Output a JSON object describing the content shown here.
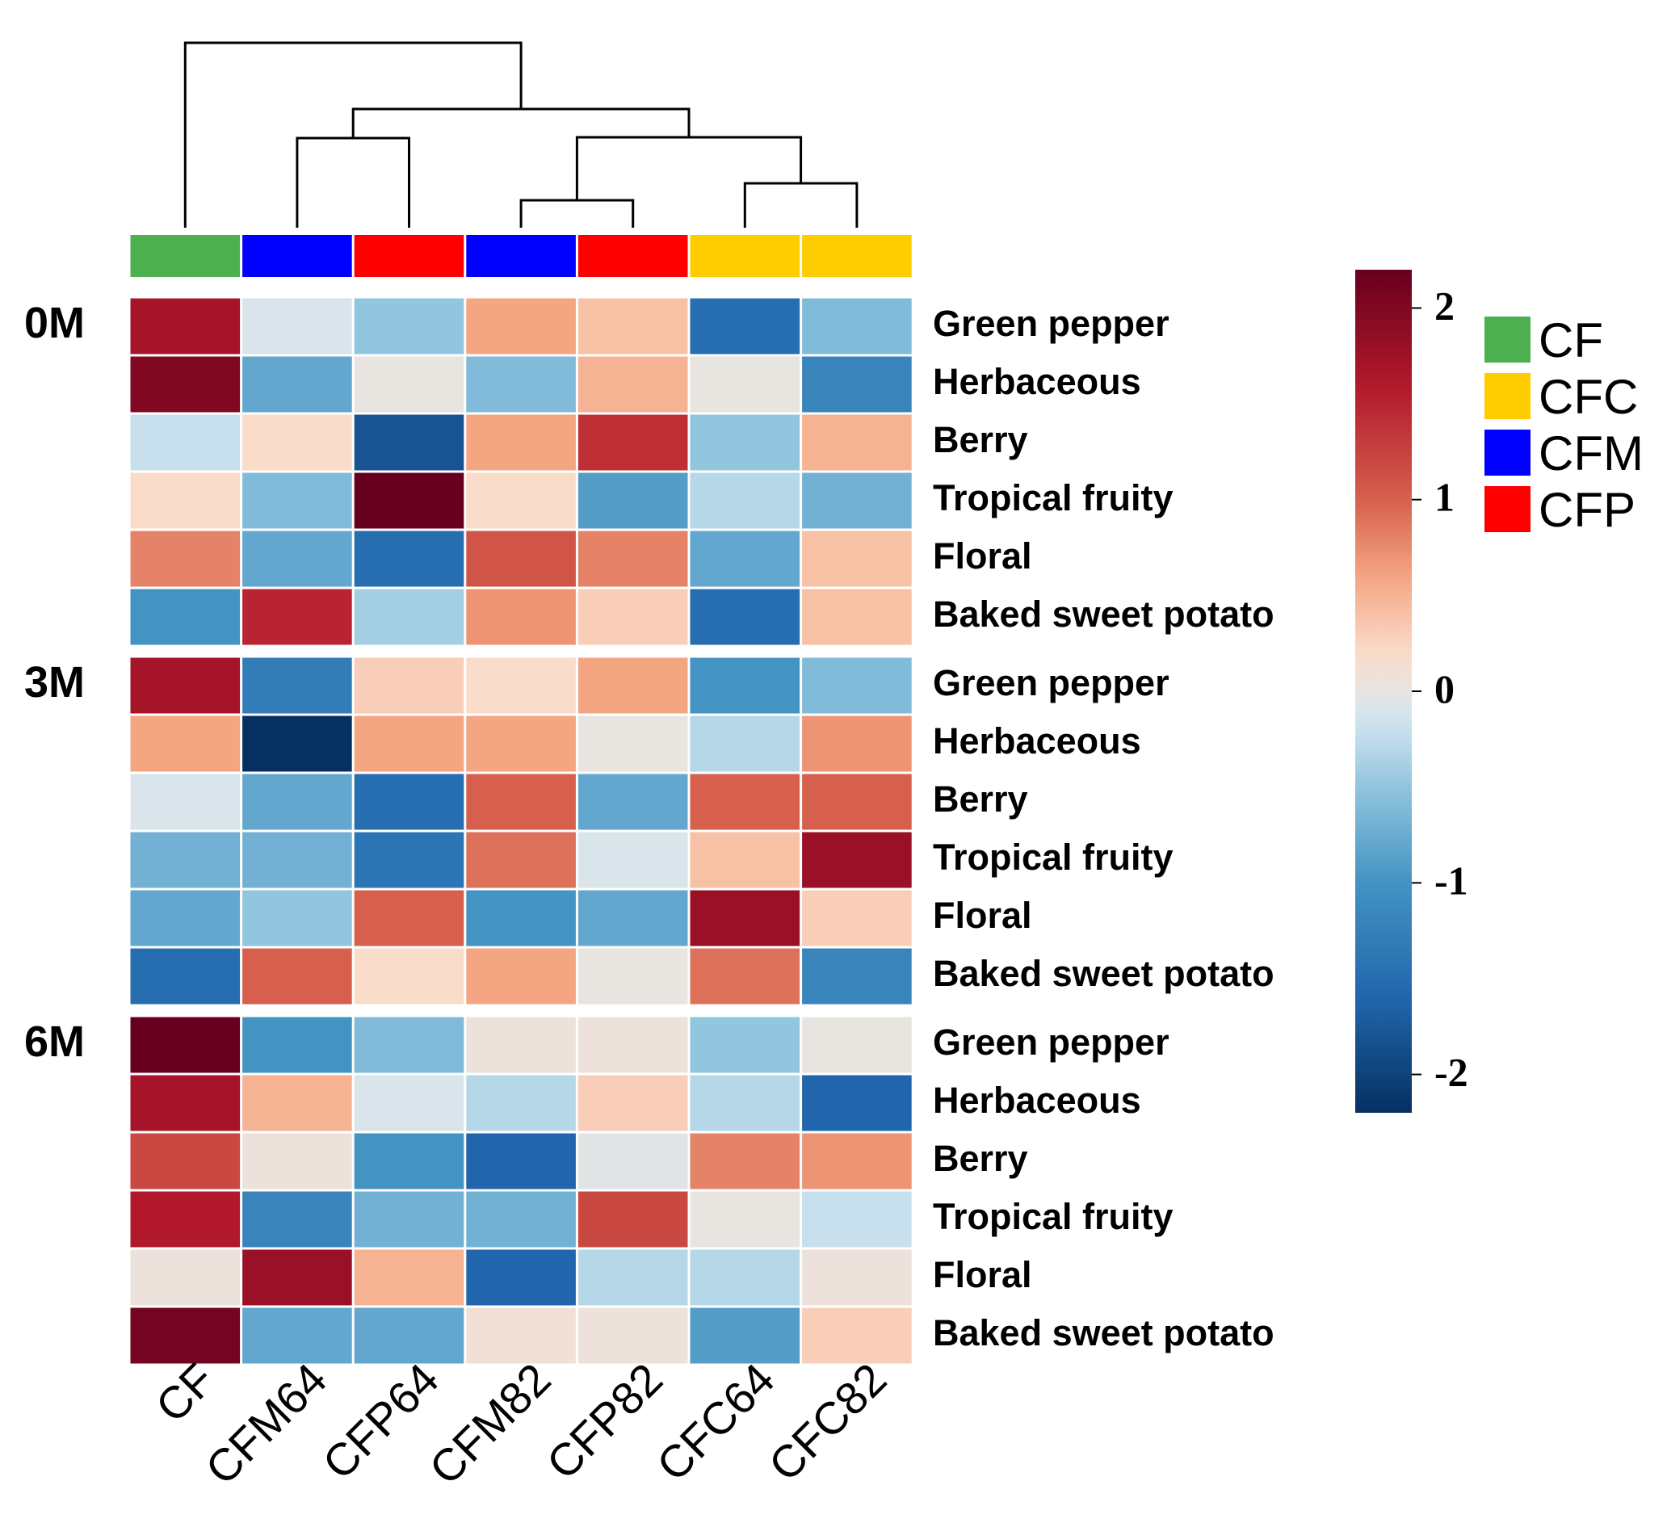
{
  "chart_data": {
    "type": "heatmap",
    "columns": [
      "CF",
      "CFM64",
      "CFP64",
      "CFM82",
      "CFP82",
      "CFC64",
      "CFC82"
    ],
    "column_groups": [
      "CF",
      "CFM",
      "CFP",
      "CFM",
      "CFP",
      "CFC",
      "CFC"
    ],
    "legend": {
      "title": "",
      "items": [
        {
          "label": "CF",
          "color": "#4caf50"
        },
        {
          "label": "CFC",
          "color": "#ffcc00"
        },
        {
          "label": "CFM",
          "color": "#0000ff"
        },
        {
          "label": "CFP",
          "color": "#ff0000"
        }
      ]
    },
    "color_scale": {
      "min": -2.2,
      "max": 2.2,
      "ticks": [
        2,
        1,
        0,
        -1,
        -2
      ],
      "tick_labels": [
        "2",
        "1",
        "0",
        "-1",
        "-2"
      ],
      "low_color": "#053061",
      "mid_color": "#e8e4e0",
      "high_color": "#67001f"
    },
    "dendrogram": "((CF),((CFM64,CFP64),((CFM82,CFP82),(CFC64,CFC82))))",
    "blocks": [
      {
        "label": "0M",
        "rows": [
          "Green pepper",
          "Herbaceous",
          "Berry",
          "Tropical fruity",
          "Floral",
          "Baked sweet potato"
        ],
        "values": [
          [
            1.7,
            -0.1,
            -0.5,
            0.6,
            0.4,
            -1.5,
            -0.6
          ],
          [
            2.0,
            -0.8,
            0.0,
            -0.6,
            0.5,
            0.0,
            -1.2
          ],
          [
            -0.2,
            0.2,
            -1.8,
            0.6,
            1.4,
            -0.5,
            0.5
          ],
          [
            0.2,
            -0.6,
            2.2,
            0.2,
            -0.9,
            -0.3,
            -0.7
          ],
          [
            0.8,
            -0.8,
            -1.5,
            1.1,
            0.8,
            -0.8,
            0.4
          ],
          [
            -1.0,
            1.5,
            -0.4,
            0.7,
            0.3,
            -1.5,
            0.4
          ]
        ]
      },
      {
        "label": "3M",
        "rows": [
          "Green pepper",
          "Herbaceous",
          "Berry",
          "Tropical fruity",
          "Floral",
          "Baked sweet potato"
        ],
        "values": [
          [
            1.7,
            -1.3,
            0.3,
            0.2,
            0.6,
            -1.0,
            -0.6
          ],
          [
            0.6,
            -2.2,
            0.6,
            0.6,
            0.0,
            -0.3,
            0.7
          ],
          [
            -0.1,
            -0.8,
            -1.5,
            1.0,
            -0.8,
            1.0,
            1.0
          ],
          [
            -0.7,
            -0.7,
            -1.4,
            0.9,
            -0.1,
            0.4,
            1.8
          ],
          [
            -0.8,
            -0.5,
            1.0,
            -1.0,
            -0.8,
            1.8,
            0.3
          ],
          [
            -1.5,
            1.0,
            0.2,
            0.6,
            0.0,
            0.9,
            -1.2
          ]
        ]
      },
      {
        "label": "6M",
        "rows": [
          "Green pepper",
          "Herbaceous",
          "Berry",
          "Tropical fruity",
          "Floral",
          "Baked sweet potato"
        ],
        "values": [
          [
            2.2,
            -1.0,
            -0.6,
            0.05,
            0.05,
            -0.5,
            0.0
          ],
          [
            1.7,
            0.5,
            -0.1,
            -0.3,
            0.3,
            -0.3,
            -1.6
          ],
          [
            1.2,
            0.05,
            -1.0,
            -1.6,
            -0.05,
            0.8,
            0.7
          ],
          [
            1.6,
            -1.2,
            -0.7,
            -0.7,
            1.2,
            0.0,
            -0.2
          ],
          [
            0.05,
            1.8,
            0.5,
            -1.6,
            -0.3,
            -0.3,
            0.05
          ],
          [
            2.1,
            -0.8,
            -0.8,
            0.1,
            0.05,
            -0.9,
            0.3
          ]
        ]
      }
    ]
  }
}
